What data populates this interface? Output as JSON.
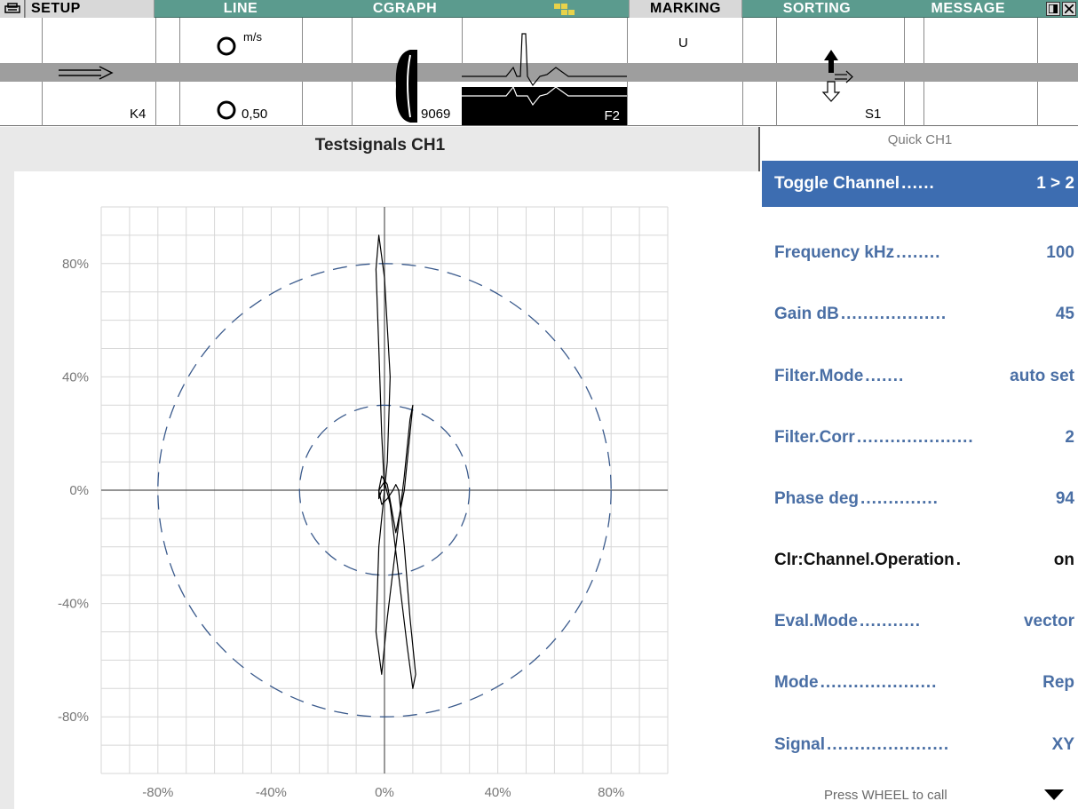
{
  "menu": {
    "tabs": [
      "SETUP",
      "LINE",
      "CGRAPH",
      "MARKING",
      "SORTING",
      "MESSAGE"
    ],
    "active_tab": "SETUP"
  },
  "status": {
    "speed_unit": "m/s",
    "speed_value": "0,50",
    "counter": "9069",
    "channel_label": "K4",
    "filter_label": "F2",
    "marking_label": "U",
    "sorting_label": "S1"
  },
  "chart": {
    "title": "Testsignals CH1"
  },
  "chart_data": {
    "type": "scatter",
    "title": "Testsignals CH1",
    "xlabel": "",
    "ylabel": "",
    "xlim": [
      -100,
      100
    ],
    "ylim": [
      -100,
      100
    ],
    "x_ticks": [
      "-80%",
      "-40%",
      "0%",
      "40%",
      "80%"
    ],
    "y_ticks": [
      "80%",
      "40%",
      "0%",
      "-40%",
      "-80%"
    ],
    "grid": true,
    "reference_circles": [
      {
        "radius": 80,
        "style": "dashed"
      },
      {
        "radius": 30,
        "style": "dashed"
      }
    ],
    "series": [
      {
        "style": "line",
        "x": [
          0,
          -1,
          -2,
          -3,
          -2,
          0,
          2,
          1,
          0,
          -2,
          -3,
          -1,
          1,
          4,
          7,
          9,
          10,
          9,
          7,
          4,
          1,
          -1,
          -2,
          -1,
          1,
          3,
          4,
          5,
          7,
          9,
          11,
          10,
          8,
          5,
          2,
          0,
          -2,
          -2,
          -1,
          0
        ],
        "y": [
          0,
          20,
          50,
          78,
          90,
          75,
          40,
          10,
          0,
          -20,
          -50,
          -65,
          -45,
          -20,
          5,
          25,
          30,
          20,
          0,
          -15,
          2,
          5,
          0,
          -5,
          -3,
          0,
          2,
          0,
          -20,
          -45,
          -65,
          -70,
          -55,
          -30,
          -5,
          3,
          0,
          -3,
          0,
          0
        ]
      }
    ],
    "color": "#000000",
    "circle_color": "#3a5a8c"
  },
  "quick": {
    "title": "Quick CH1",
    "items": [
      {
        "label": "Toggle Channel",
        "dots": "......",
        "value": "1 > 2"
      },
      {
        "label": "Frequency kHz",
        "dots": "........",
        "value": "100"
      },
      {
        "label": "Gain dB",
        "dots": "...................",
        "value": "45"
      },
      {
        "label": "Filter.Mode",
        "dots": ".......",
        "value": "auto set"
      },
      {
        "label": "Filter.Corr",
        "dots": ".....................",
        "value": "2"
      },
      {
        "label": "Phase deg",
        "dots": "..............",
        "value": "94"
      },
      {
        "label": "Clr:Channel.Operation",
        "dots": ".",
        "value": "on"
      },
      {
        "label": "Eval.Mode",
        "dots": "...........",
        "value": "vector"
      },
      {
        "label": "Mode",
        "dots": ".....................",
        "value": "Rep"
      },
      {
        "label": "Signal",
        "dots": "......................",
        "value": "XY"
      }
    ],
    "footer": "Press WHEEL to call"
  }
}
